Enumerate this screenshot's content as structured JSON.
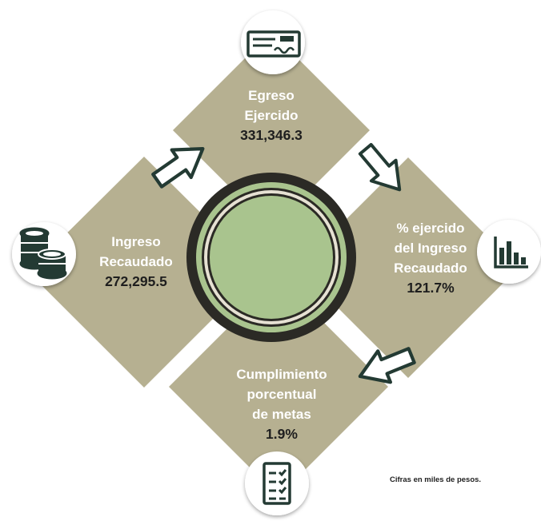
{
  "colors": {
    "panel": "#b6b091",
    "center_fill": "#a9c48e",
    "ring_dark": "#2b2a25",
    "arrow_stroke": "#233a33",
    "icon_stroke": "#233a33",
    "value_text": "#1e1e1e",
    "label_text": "#ffffff"
  },
  "egreso": {
    "line1": "Egreso",
    "line2": "Ejercido",
    "value": "331,346.3",
    "icon": "check-icon"
  },
  "ingreso": {
    "line1": "Ingreso",
    "line2": "Recaudado",
    "value": "272,295.5",
    "icon": "coins-icon"
  },
  "porcentaje": {
    "line1": "% ejercido",
    "line2": "del Ingreso",
    "line3": "Recaudado",
    "value": "121.7%",
    "icon": "bar-chart-icon"
  },
  "cumplimiento": {
    "line1": "Cumplimiento",
    "line2": "porcentual",
    "line3": "de metas",
    "value": "1.9%",
    "icon": "checklist-icon"
  },
  "footnote": "Cifras en miles de pesos."
}
